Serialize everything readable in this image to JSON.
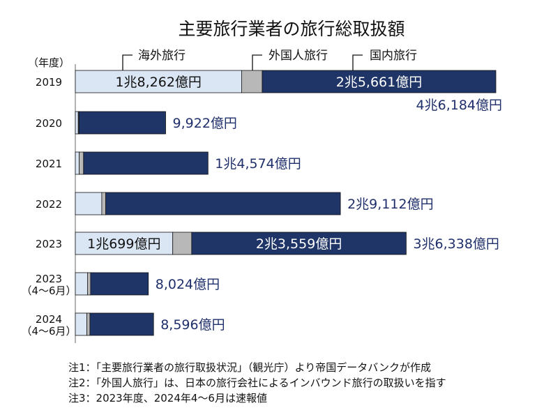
{
  "title": "主要旅行業者の旅行総取扱額",
  "year_unit_label": "（年度）",
  "legend": [
    {
      "name": "海外旅行",
      "color": "#dbe6f5"
    },
    {
      "name": "外国人旅行",
      "color": "#b8b8b8"
    },
    {
      "name": "国内旅行",
      "color": "#1f3467"
    }
  ],
  "chart_data": {
    "type": "bar",
    "orientation": "horizontal",
    "stacked": true,
    "unit": "億円",
    "categories": [
      "2019",
      "2020",
      "2021",
      "2022",
      "2023",
      "2023（4～6月）",
      "2024（4～6月）"
    ],
    "series": [
      {
        "name": "海外旅行",
        "values": [
          18262,
          320,
          420,
          2900,
          10699,
          1330,
          1260
        ]
      },
      {
        "name": "外国人旅行",
        "values": [
          2261,
          80,
          480,
          440,
          2080,
          350,
          340
        ]
      },
      {
        "name": "国内旅行",
        "values": [
          25661,
          9522,
          13674,
          25772,
          23559,
          6344,
          6996
        ]
      }
    ],
    "totals": [
      46184,
      9922,
      14574,
      29112,
      36338,
      8024,
      8596
    ],
    "segment_labels": {
      "0": {
        "海外旅行": "1兆8,262億円",
        "国内旅行": "2兆5,661億円"
      },
      "4": {
        "海外旅行": "1兆699億円",
        "国内旅行": "2兆3,559億円"
      }
    },
    "total_labels": [
      "4兆6,184億円",
      "9,922億円",
      "1兆4,574億円",
      "2兆9,112億円",
      "3兆6,338億円",
      "8,024億円",
      "8,596億円"
    ],
    "category_labels": [
      [
        "2019"
      ],
      [
        "2020"
      ],
      [
        "2021"
      ],
      [
        "2022"
      ],
      [
        "2023"
      ],
      [
        "2023",
        "（4～6月）"
      ],
      [
        "2024",
        "（4～6月）"
      ]
    ],
    "xlim": [
      0,
      46184
    ]
  },
  "notes": [
    "注1：「主要旅行業者の旅行取扱状況」（観光庁）より帝国データバンクが作成",
    "注2：「外国人旅行」は、日本の旅行会社によるインバウンド旅行の取扱いを指す",
    "注3：2023年度、2024年4～6月は速報値"
  ]
}
